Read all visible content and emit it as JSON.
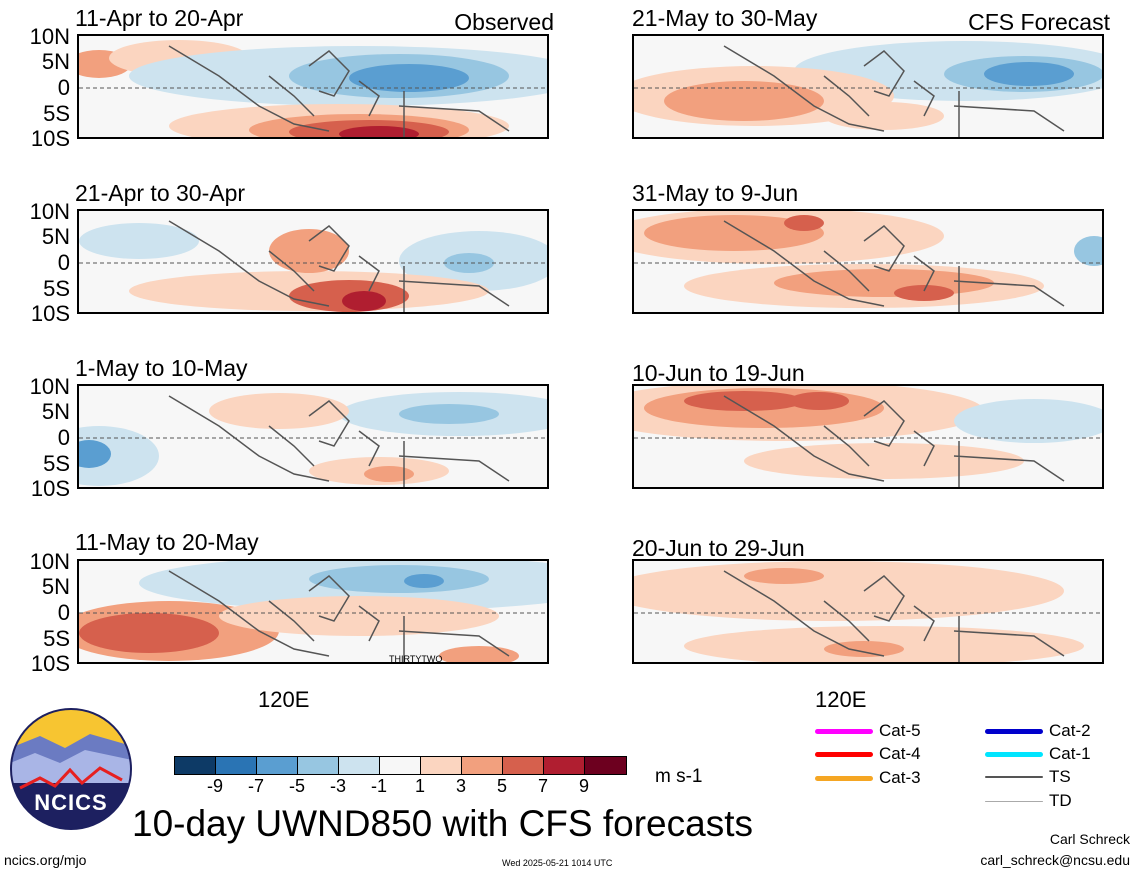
{
  "observed_label": "Observed",
  "forecast_label": "CFS Forecast",
  "lat_labels": [
    "10N",
    "5N",
    "0",
    "5S",
    "10S"
  ],
  "lon_label": "120E",
  "left_panels": [
    {
      "title": "11-Apr to 20-Apr"
    },
    {
      "title": "21-Apr to 30-Apr"
    },
    {
      "title": "1-May to 10-May"
    },
    {
      "title": "11-May to 20-May",
      "annotation": "THIRTYTWO"
    }
  ],
  "right_panels": [
    {
      "title": "21-May to 30-May"
    },
    {
      "title": "31-May to 9-Jun"
    },
    {
      "title": "10-Jun to 19-Jun"
    },
    {
      "title": "20-Jun to 29-Jun"
    }
  ],
  "colorbar": {
    "colors": [
      "#0d3a66",
      "#2a74b4",
      "#5a9ed1",
      "#97c6e1",
      "#cde3ef",
      "#f7f7f7",
      "#fbd5c0",
      "#f2a07e",
      "#d6604d",
      "#b01e30",
      "#6d001f"
    ],
    "ticks": [
      "-9",
      "-7",
      "-5",
      "-3",
      "-1",
      "1",
      "3",
      "5",
      "7",
      "9"
    ],
    "units": "m s-1"
  },
  "legend": [
    {
      "label": "Cat-5",
      "color": "#ff00ff"
    },
    {
      "label": "Cat-4",
      "color": "#ff0000"
    },
    {
      "label": "Cat-3",
      "color": "#f5a623"
    },
    {
      "label": "Cat-2",
      "color": "#0000cc"
    },
    {
      "label": "Cat-1",
      "color": "#00e5ff"
    },
    {
      "label": "TS",
      "color": "#555555"
    },
    {
      "label": "TD",
      "color": "#aaaaaa"
    }
  ],
  "logo_text": "NCICS",
  "main_title": "10-day UWND850 with CFS forecasts",
  "footer": {
    "website": "ncics.org/mjo",
    "timestamp": "Wed 2025-05-21 1014 UTC",
    "author": "Carl Schreck",
    "email": "carl_schreck@ncsu.edu"
  }
}
